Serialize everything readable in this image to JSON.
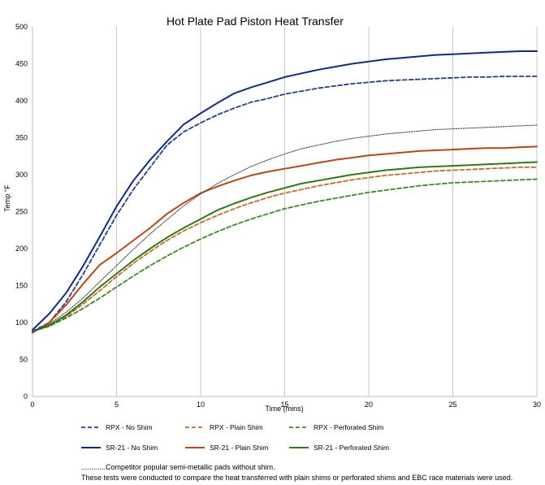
{
  "chart_data": {
    "type": "line",
    "title": "Hot Plate Pad Piston Heat Transfer",
    "xlabel": "Time (mins)",
    "ylabel": "Temp °F",
    "xlim": [
      0,
      30
    ],
    "ylim": [
      0,
      500
    ],
    "x_ticks": [
      "0",
      "5",
      "10",
      "15",
      "20",
      "25",
      "30"
    ],
    "y_ticks": [
      "0",
      "50",
      "100",
      "150",
      "200",
      "250",
      "300",
      "350",
      "400",
      "450",
      "500"
    ],
    "grid": "vertical",
    "legend_position": "bottom",
    "x": [
      0,
      1,
      2,
      3,
      4,
      5,
      6,
      7,
      8,
      9,
      10,
      11,
      12,
      13,
      14,
      15,
      16,
      17,
      18,
      19,
      20,
      21,
      22,
      23,
      24,
      25,
      26,
      27,
      28,
      29,
      30
    ],
    "series": [
      {
        "name": "RPX - No Shim",
        "color": "#1f3f99",
        "dash": "dashed",
        "values": [
          88,
          100,
          128,
          165,
          205,
          245,
          280,
          310,
          340,
          358,
          370,
          381,
          390,
          398,
          403,
          409,
          413,
          417,
          420,
          423,
          425,
          427,
          428,
          429,
          430,
          431,
          432,
          432,
          433,
          433,
          433
        ]
      },
      {
        "name": "RPX - Plain Shim",
        "color": "#d2691e",
        "dash": "dashed",
        "values": [
          88,
          95,
          108,
          125,
          143,
          162,
          180,
          196,
          211,
          224,
          235,
          245,
          254,
          262,
          269,
          275,
          280,
          285,
          289,
          293,
          296,
          299,
          301,
          303,
          305,
          306,
          307,
          308,
          309,
          310,
          310
        ]
      },
      {
        "name": "RPX - Perforated Shim",
        "color": "#3a8c1f",
        "dash": "dashed",
        "values": [
          88,
          95,
          106,
          119,
          133,
          148,
          163,
          177,
          190,
          202,
          213,
          223,
          232,
          240,
          247,
          254,
          259,
          264,
          268,
          272,
          276,
          279,
          282,
          285,
          287,
          289,
          290,
          291,
          292,
          293,
          294
        ]
      },
      {
        "name": "SR-21 - No Shim",
        "color": "#0f2a8c",
        "dash": "solid",
        "values": [
          90,
          112,
          140,
          176,
          216,
          257,
          292,
          320,
          345,
          368,
          383,
          397,
          410,
          418,
          425,
          432,
          437,
          442,
          446,
          450,
          453,
          456,
          458,
          460,
          462,
          463,
          464,
          465,
          466,
          467,
          467
        ]
      },
      {
        "name": "SR-21 - Plain Shim",
        "color": "#c0440f",
        "dash": "solid",
        "values": [
          86,
          100,
          124,
          152,
          178,
          194,
          211,
          228,
          247,
          262,
          275,
          284,
          292,
          299,
          304,
          308,
          312,
          316,
          320,
          323,
          326,
          328,
          330,
          332,
          333,
          334,
          335,
          336,
          336,
          337,
          338
        ]
      },
      {
        "name": "SR-21 - Perforated Shim",
        "color": "#2b7d12",
        "dash": "solid",
        "values": [
          88,
          96,
          110,
          128,
          148,
          166,
          184,
          200,
          215,
          228,
          240,
          252,
          261,
          269,
          276,
          282,
          288,
          292,
          296,
          300,
          303,
          306,
          308,
          310,
          311,
          312,
          313,
          314,
          315,
          316,
          317
        ]
      },
      {
        "name": "Competitor",
        "color": "#404040",
        "dash": "dotted",
        "values": [
          88,
          98,
          114,
          133,
          155,
          177,
          199,
          220,
          239,
          258,
          274,
          288,
          300,
          311,
          320,
          328,
          335,
          340,
          345,
          349,
          352,
          355,
          357,
          359,
          361,
          362,
          363,
          364,
          365,
          366,
          367
        ]
      }
    ]
  },
  "legend": [
    {
      "label": "RPX - No Shim",
      "series": 0
    },
    {
      "label": "RPX - Plain Shim",
      "series": 1
    },
    {
      "label": "RPX - Perforated Shim",
      "series": 2
    },
    {
      "label": "SR-21 - No Shim",
      "series": 3
    },
    {
      "label": "SR-21 - Plain Shim",
      "series": 4
    },
    {
      "label": "SR-21 - Perforated Shim",
      "series": 5
    }
  ],
  "notes": {
    "competitor_note": "............Competitor popular semi-metallic pads without shim.",
    "tests_note": "These tests were conducted to  compare the heat transferred with plain shims or perforated shims and EBC race materials were used."
  }
}
